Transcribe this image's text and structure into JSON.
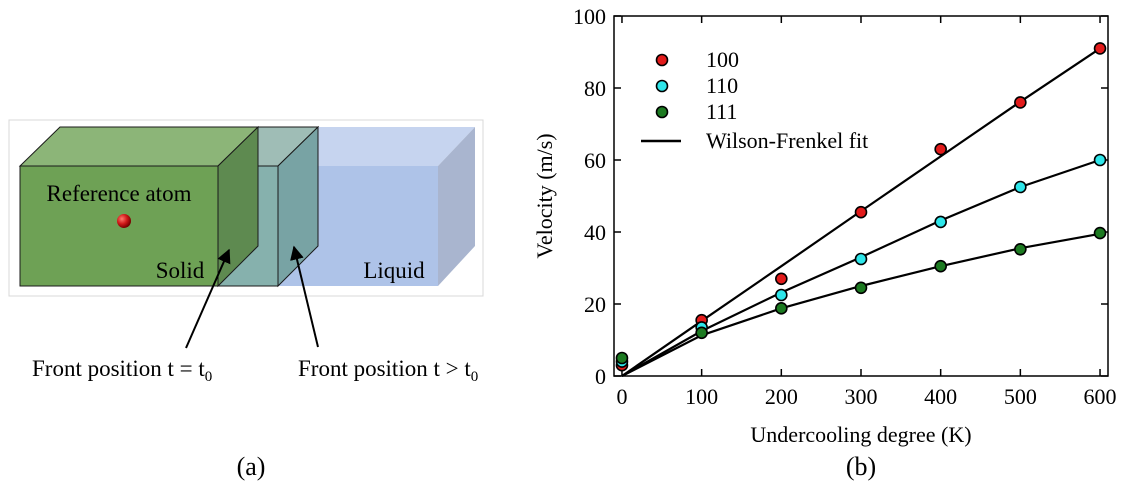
{
  "panel_a": {
    "label": "(a)",
    "reference_label": "Reference atom",
    "solid_label": "Solid",
    "liquid_label": "Liquid",
    "front1_prefix": "Front position t = t",
    "front1_sub": "0",
    "front2_prefix": "Front position t > t",
    "front2_sub": "0",
    "colors": {
      "solid": "#6aa150",
      "interface": "#7aa9a6",
      "liquid": "#a9c0e8",
      "atom": "#d11a1a"
    }
  },
  "panel_b": {
    "label": "(b)"
  },
  "chart_data": {
    "type": "scatter",
    "title": "",
    "xlabel": "Undercooling degree (K)",
    "ylabel": "Velocity (m/s)",
    "xlim": [
      -10,
      610
    ],
    "ylim": [
      0,
      100
    ],
    "x_ticks": [
      0,
      100,
      200,
      300,
      400,
      500,
      600
    ],
    "y_ticks": [
      0,
      20,
      40,
      60,
      80,
      100
    ],
    "grid": false,
    "legend_position": "top-left",
    "series": [
      {
        "name": "100",
        "color": "#e21b1b",
        "x": [
          0,
          100,
          200,
          300,
          400,
          500,
          600
        ],
        "y": [
          3,
          15.5,
          27,
          45.5,
          63,
          76,
          91
        ]
      },
      {
        "name": "110",
        "color": "#2ee6ea",
        "x": [
          0,
          100,
          200,
          300,
          400,
          500,
          600
        ],
        "y": [
          4,
          13.5,
          22.5,
          32.5,
          42.8,
          52.5,
          60
        ]
      },
      {
        "name": "111",
        "color": "#1c7a21",
        "x": [
          0,
          100,
          200,
          300,
          400,
          500,
          600
        ],
        "y": [
          5,
          12,
          18.8,
          24.5,
          30.5,
          35.2,
          39.7
        ]
      }
    ],
    "fit": {
      "name": "Wilson-Frenkel fit",
      "color": "#000000",
      "lines": [
        {
          "x": [
            0,
            100,
            200,
            300,
            400,
            500,
            600
          ],
          "y": [
            0,
            15.3,
            30.5,
            45.8,
            61.0,
            76.2,
            91.0
          ]
        },
        {
          "x": [
            0,
            100,
            200,
            300,
            400,
            500,
            600
          ],
          "y": [
            0,
            12.5,
            23.2,
            33.0,
            43.2,
            52.5,
            60.0
          ]
        },
        {
          "x": [
            0,
            100,
            200,
            300,
            400,
            500,
            600
          ],
          "y": [
            0,
            11.3,
            18.8,
            25.0,
            30.5,
            35.5,
            39.5
          ]
        }
      ]
    }
  }
}
